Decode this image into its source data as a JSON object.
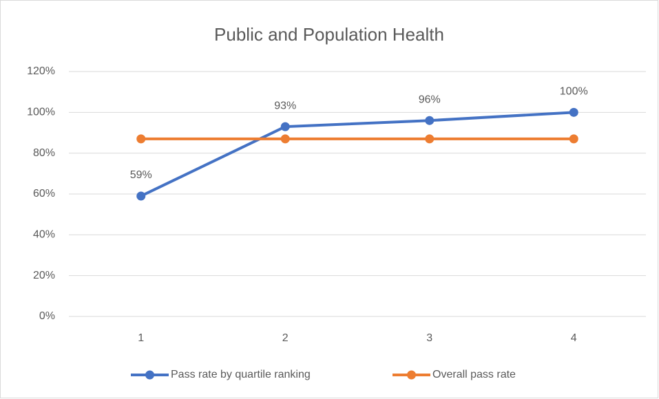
{
  "chart_data": {
    "type": "line",
    "title": "Public and Population Health",
    "categories": [
      "1",
      "2",
      "3",
      "4"
    ],
    "series": [
      {
        "name": "Pass rate by quartile ranking",
        "color": "#4472c4",
        "values": [
          59,
          93,
          96,
          100
        ],
        "value_labels": [
          "59%",
          "93%",
          "96%",
          "100%"
        ]
      },
      {
        "name": "Overall pass rate",
        "color": "#ed7d31",
        "values": [
          87,
          87,
          87,
          87
        ]
      }
    ],
    "ylim": [
      0,
      120
    ],
    "yticks": [
      {
        "value": 0,
        "label": "0%"
      },
      {
        "value": 20,
        "label": "20%"
      },
      {
        "value": 40,
        "label": "40%"
      },
      {
        "value": 60,
        "label": "60%"
      },
      {
        "value": 80,
        "label": "80%"
      },
      {
        "value": 100,
        "label": "100%"
      },
      {
        "value": 120,
        "label": "120%"
      }
    ],
    "grid": true,
    "legend": "bottom"
  }
}
